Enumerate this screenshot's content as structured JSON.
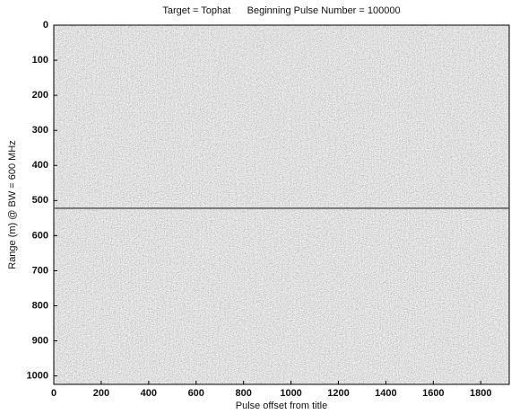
{
  "chart_data": {
    "type": "heatmap",
    "title": "Target = Tophat      Beginning Pulse Number = 100000",
    "x_label": "Pulse offset from title",
    "y_label": "Range (m) @ BW = 600 MHz",
    "xlim": [
      0,
      1920
    ],
    "xticks": [
      0,
      200,
      400,
      600,
      800,
      1000,
      1200,
      1400,
      1600,
      1800
    ],
    "ylim": [
      0,
      1024
    ],
    "yticks": [
      0,
      100,
      200,
      300,
      400,
      500,
      600,
      700,
      800,
      900,
      1000
    ],
    "y_inverted": true,
    "target_range": 522,
    "line_color": "#555555"
  }
}
